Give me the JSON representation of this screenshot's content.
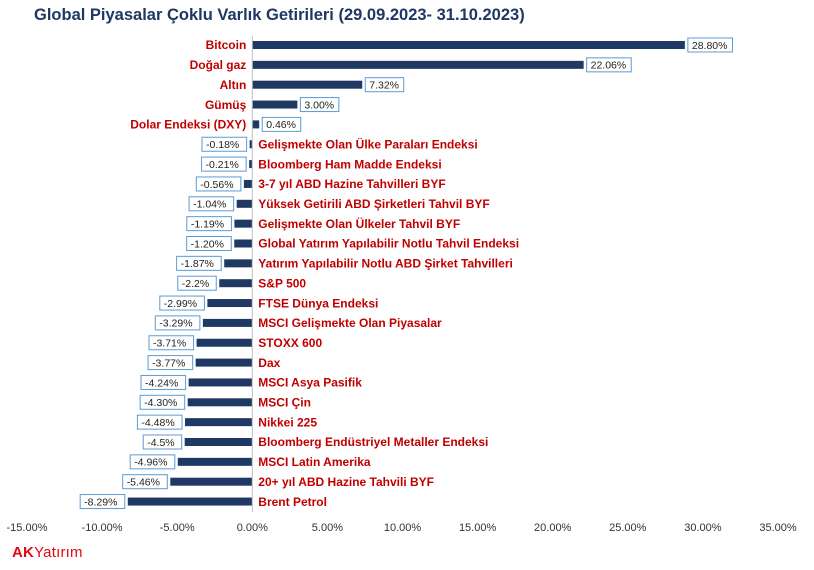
{
  "chart_data": {
    "type": "bar",
    "orientation": "horizontal",
    "title": "Global Piyasalar Çoklu Varlık Getirileri (29.09.2023- 31.10.2023)",
    "categories": [
      "Bitcoin",
      "Doğal gaz",
      "Altın",
      "Gümüş",
      "Dolar Endeksi (DXY)",
      "Gelişmekte Olan Ülke Paraları Endeksi",
      "Bloomberg Ham Madde Endeksi",
      "3-7 yıl ABD Hazine Tahvilleri BYF",
      "Yüksek Getirili ABD Şirketleri Tahvil BYF",
      "Gelişmekte Olan Ülkeler Tahvil BYF",
      "Global Yatırım Yapılabilir Notlu Tahvil Endeksi",
      "Yatırım Yapılabilir Notlu  ABD Şirket Tahvilleri",
      "S&P 500",
      "FTSE Dünya Endeksi",
      "MSCI Gelişmekte Olan Piyasalar",
      "STOXX 600",
      "Dax",
      "MSCI Asya Pasifik",
      "MSCI Çin",
      "Nikkei 225",
      "Bloomberg Endüstriyel Metaller Endeksi",
      "MSCI Latin Amerika",
      "20+ yıl ABD Hazine Tahvili BYF",
      "Brent Petrol"
    ],
    "values": [
      28.8,
      22.06,
      7.32,
      3.0,
      0.46,
      -0.18,
      -0.21,
      -0.56,
      -1.04,
      -1.19,
      -1.2,
      -1.87,
      -2.2,
      -2.99,
      -3.29,
      -3.71,
      -3.77,
      -4.24,
      -4.3,
      -4.48,
      -4.5,
      -4.96,
      -5.46,
      -8.29
    ],
    "data_labels": [
      "28.80%",
      "22.06%",
      "7.32%",
      "3.00%",
      "0.46%",
      "-0.18%",
      "-0.21%",
      "-0.56%",
      "-1.04%",
      "-1.19%",
      "-1.20%",
      "-1.87%",
      "-2.2%",
      "-2.99%",
      "-3.29%",
      "-3.71%",
      "-3.77%",
      "-4.24%",
      "-4.30%",
      "-4.48%",
      "-4.5%",
      "-4.96%",
      "-5.46%",
      "-8.29%"
    ],
    "xlim": [
      -15,
      35
    ],
    "x_ticks": [
      -15,
      -10,
      -5,
      0,
      5,
      10,
      15,
      20,
      25,
      30,
      35
    ],
    "x_tick_labels": [
      "-15.00%",
      "-10.00%",
      "-5.00%",
      "0.00%",
      "5.00%",
      "10.00%",
      "15.00%",
      "20.00%",
      "25.00%",
      "30.00%",
      "35.00%"
    ],
    "grid": false,
    "legend": "none",
    "bar_color": "#1f3864",
    "label_color": "#c00000",
    "title_color": "#1f3763",
    "data_label_border_color": "#5b9bd5"
  },
  "brand": {
    "ak": "AK",
    "rest": "Yatırım",
    "color": "#e30613"
  }
}
